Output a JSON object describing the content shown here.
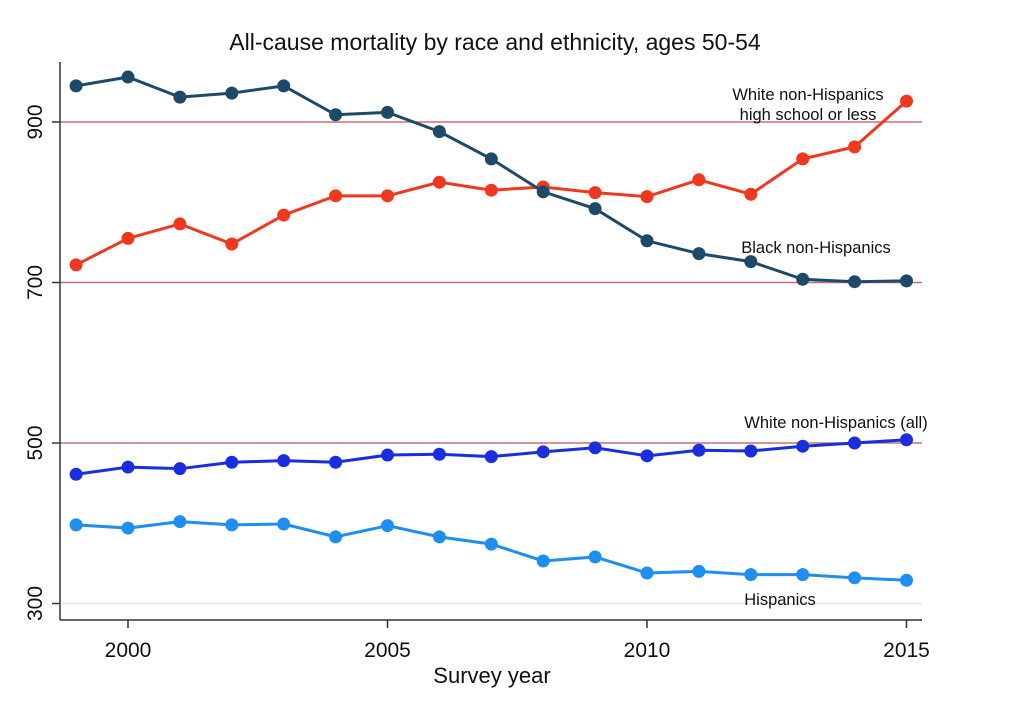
{
  "chart_data": {
    "type": "line",
    "title": "All-cause mortality by race and ethnicity, ages 50-54",
    "xlabel": "Survey year",
    "ylabel": "",
    "xlim": [
      1998.5,
      2015.3
    ],
    "ylim": [
      240,
      935
    ],
    "x_ticks": [
      2000,
      2005,
      2010,
      2015
    ],
    "y_ticks": [
      300,
      500,
      700,
      900
    ],
    "reference_lines": [
      {
        "y": 900,
        "color": "#c0707a"
      },
      {
        "y": 700,
        "color": "#c0707a"
      },
      {
        "y": 500,
        "color": "#c0707a"
      },
      {
        "y": 300,
        "color": "#d6ecea"
      }
    ],
    "grid": false,
    "legend": "none",
    "x": [
      1999,
      2000,
      2001,
      2002,
      2003,
      2004,
      2005,
      2006,
      2007,
      2008,
      2009,
      2010,
      2011,
      2012,
      2013,
      2014,
      2015
    ],
    "series": [
      {
        "name": "White non-Hispanics high school or less",
        "label_lines": [
          "White non-Hispanics",
          "high school or less"
        ],
        "color": "#f0381e",
        "values": [
          722,
          755,
          773,
          748,
          784,
          808,
          808,
          825,
          815,
          819,
          812,
          807,
          828,
          810,
          854,
          869,
          926
        ]
      },
      {
        "name": "Black non-Hispanics",
        "label_lines": [
          "Black non-Hispanics"
        ],
        "color": "#1e4a6a",
        "values": [
          945,
          956,
          931,
          936,
          945,
          909,
          912,
          888,
          854,
          813,
          792,
          752,
          736,
          726,
          704,
          701,
          702
        ]
      },
      {
        "name": "White non-Hispanics (all)",
        "label_lines": [
          "White non-Hispanics (all)"
        ],
        "color": "#1a2ee0",
        "values": [
          461,
          470,
          468,
          476,
          478,
          476,
          485,
          486,
          483,
          489,
          494,
          484,
          491,
          490,
          496,
          500,
          504
        ]
      },
      {
        "name": "Hispanics",
        "label_lines": [
          "Hispanics"
        ],
        "color": "#1e8ef0",
        "values": [
          398,
          394,
          402,
          398,
          399,
          383,
          397,
          383,
          374,
          353,
          358,
          338,
          340,
          336,
          336,
          332,
          329
        ]
      }
    ]
  }
}
